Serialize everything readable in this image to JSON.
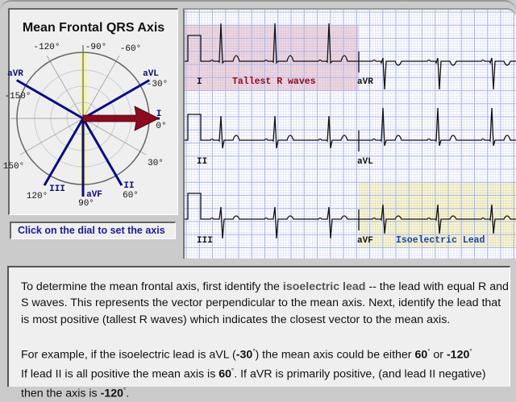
{
  "dial": {
    "title": "Mean Frontal QRS Axis",
    "hint": "Click on the dial to set the axis",
    "angle_labels": [
      {
        "text": "-120°",
        "deg": -120
      },
      {
        "text": "-90°",
        "deg": -90
      },
      {
        "text": "-60°",
        "deg": -60
      },
      {
        "text": "-30°",
        "deg": -30
      },
      {
        "text": "0°",
        "deg": 0
      },
      {
        "text": "30°",
        "deg": 30
      },
      {
        "text": "60°",
        "deg": 60
      },
      {
        "text": "90°",
        "deg": 90
      },
      {
        "text": "120°",
        "deg": 120
      },
      {
        "text": "150°",
        "deg": 150
      },
      {
        "text": "-150°",
        "deg": -150
      }
    ],
    "leads": [
      {
        "name": "I",
        "deg": 0
      },
      {
        "name": "aVL",
        "deg": -30
      },
      {
        "name": "II",
        "deg": 60
      },
      {
        "name": "aVF",
        "deg": 90
      },
      {
        "name": "III",
        "deg": 120
      },
      {
        "name": "aVR",
        "deg": -150
      }
    ],
    "selected_axis_deg": 0,
    "isoelectric_deg": 90,
    "colors": {
      "lead": "#0a0a8a",
      "arrow": "#8b0a1e",
      "iso_band": "#f6f59a"
    }
  },
  "ecg": {
    "leads": [
      "I",
      "II",
      "III",
      "aVR",
      "aVL",
      "aVF"
    ],
    "tallest_label": "Tallest R waves",
    "isoelectric_label": "Isoelectric Lead",
    "colors": {
      "grid": "#a9b6ea",
      "tallest_bg": "#f2d6dc",
      "iso_bg": "#fbf7c8",
      "tallest_text": "#8b0a1e",
      "iso_text": "#1a3fb0"
    }
  },
  "explanation": {
    "p1_a": "To determine the mean frontal axis, first identify the ",
    "p1_kw": "isoelectric lead",
    "p1_b": " -- the lead with equal R and S waves. This represents the vector perpendicular to the mean axis. Next, identify the lead that is most positive (tallest R waves) which indicates the closest vector to the mean axis.",
    "p2_a": "For example, if the isoelectric lead is aVL (",
    "p2_v1": "-30",
    "p2_b": ") the mean axis could be either ",
    "p2_v2": "60",
    "p2_c": " or  ",
    "p2_v3": "-120",
    "p2_d": "If lead II is all positive the mean axis is ",
    "p2_v4": "60",
    "p2_e": ". If aVR is primarily positive, (and lead II negative) then the axis is  ",
    "p2_v5": "-120",
    "p2_f": ".",
    "deg": "°"
  }
}
